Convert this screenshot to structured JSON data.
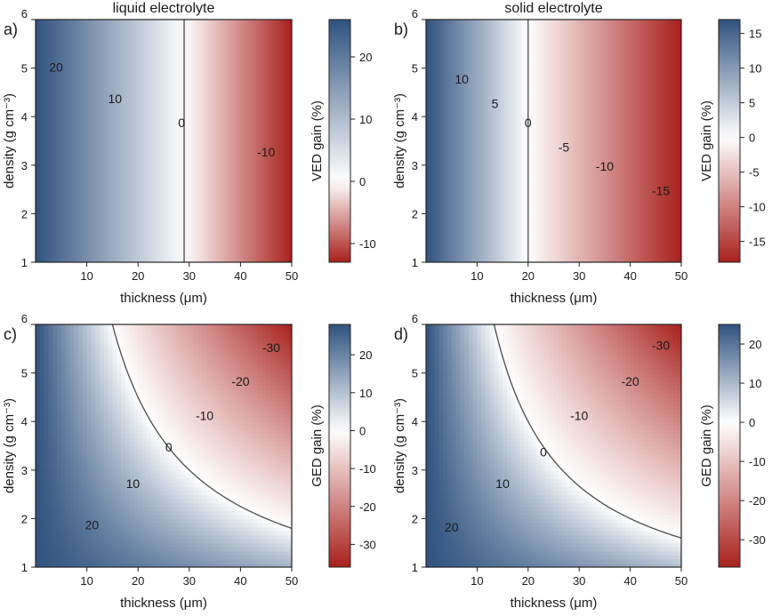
{
  "colors": {
    "blue": "#2f527f",
    "white": "#ffffff",
    "red": "#a8201c",
    "contour": "#555555"
  },
  "chart_data": [
    {
      "type": "heatmap",
      "panel": "a)",
      "title": "liquid electrolyte",
      "xlabel": "thickness (μm)",
      "ylabel": "density (g cm⁻³)",
      "xlim": [
        0,
        50
      ],
      "ylim": [
        1,
        6
      ],
      "xticks": [
        10,
        20,
        30,
        40,
        50
      ],
      "yticks": [
        1,
        2,
        3,
        4,
        5,
        6
      ],
      "colorbar": {
        "label": "VED gain (%)",
        "ticks": [
          20,
          10,
          0,
          -10
        ],
        "range": [
          -13,
          26
        ]
      },
      "field": "vertical",
      "zero_at_x": 29,
      "contours": [
        {
          "label": "20",
          "x": 4,
          "y": 5.0
        },
        {
          "label": "10",
          "x": 15.5,
          "y": 4.35
        },
        {
          "label": "0",
          "x": 28.5,
          "y": 3.85
        },
        {
          "label": "-10",
          "x": 45,
          "y": 3.25
        }
      ]
    },
    {
      "type": "heatmap",
      "panel": "b)",
      "title": "solid electrolyte",
      "xlabel": "thickness (μm)",
      "ylabel": "density (g cm⁻³)",
      "xlim": [
        0,
        50
      ],
      "ylim": [
        1,
        6
      ],
      "xticks": [
        10,
        20,
        30,
        40,
        50
      ],
      "yticks": [
        1,
        2,
        3,
        4,
        5,
        6
      ],
      "colorbar": {
        "label": "VED gain (%)",
        "ticks": [
          15,
          10,
          5,
          0,
          -5,
          -10,
          -15
        ],
        "range": [
          -18,
          17
        ]
      },
      "field": "vertical",
      "zero_at_x": 20,
      "contours": [
        {
          "label": "10",
          "x": 7,
          "y": 4.75
        },
        {
          "label": "5",
          "x": 13.5,
          "y": 4.25
        },
        {
          "label": "0",
          "x": 20,
          "y": 3.85
        },
        {
          "label": "-5",
          "x": 27,
          "y": 3.35
        },
        {
          "label": "-10",
          "x": 35,
          "y": 2.95
        },
        {
          "label": "-15",
          "x": 46,
          "y": 2.45
        }
      ]
    },
    {
      "type": "heatmap",
      "panel": "c)",
      "title": "",
      "xlabel": "thickness (μm)",
      "ylabel": "density (g cm⁻³)",
      "xlim": [
        0,
        50
      ],
      "ylim": [
        1,
        6
      ],
      "xticks": [
        10,
        20,
        30,
        40,
        50
      ],
      "yticks": [
        1,
        2,
        3,
        4,
        5,
        6
      ],
      "colorbar": {
        "label": "GED gain (%)",
        "ticks": [
          20,
          10,
          0,
          -10,
          -20,
          -30
        ],
        "range": [
          -36,
          28
        ]
      },
      "field": "hyperbolic",
      "zero_product": 90,
      "contours": [
        {
          "label": "-30",
          "x": 46,
          "y": 5.5
        },
        {
          "label": "-20",
          "x": 40,
          "y": 4.8
        },
        {
          "label": "-10",
          "x": 33,
          "y": 4.1
        },
        {
          "label": "0",
          "x": 26,
          "y": 3.45
        },
        {
          "label": "10",
          "x": 19,
          "y": 2.7
        },
        {
          "label": "20",
          "x": 11,
          "y": 1.85
        }
      ]
    },
    {
      "type": "heatmap",
      "panel": "d)",
      "title": "",
      "xlabel": "thickness (μm)",
      "ylabel": "density (g cm⁻³)",
      "xlim": [
        0,
        50
      ],
      "ylim": [
        1,
        6
      ],
      "xticks": [
        10,
        20,
        30,
        40,
        50
      ],
      "yticks": [
        1,
        2,
        3,
        4,
        5,
        6
      ],
      "colorbar": {
        "label": "GED gain (%)",
        "ticks": [
          20,
          10,
          0,
          -10,
          -20,
          -30
        ],
        "range": [
          -37,
          25
        ]
      },
      "field": "hyperbolic",
      "zero_product": 80,
      "contours": [
        {
          "label": "-30",
          "x": 46,
          "y": 5.55
        },
        {
          "label": "-20",
          "x": 40,
          "y": 4.8
        },
        {
          "label": "-10",
          "x": 30,
          "y": 4.1
        },
        {
          "label": "0",
          "x": 23,
          "y": 3.35
        },
        {
          "label": "10",
          "x": 15,
          "y": 2.7
        },
        {
          "label": "20",
          "x": 5,
          "y": 1.8
        }
      ]
    }
  ]
}
